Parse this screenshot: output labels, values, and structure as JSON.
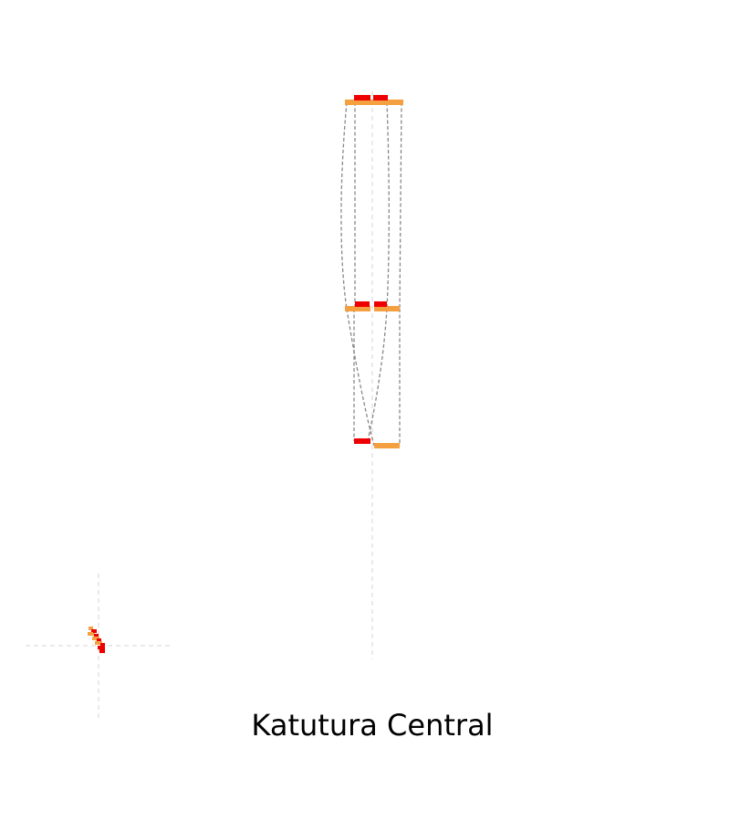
{
  "diagram": {
    "caption": "Katutura Central",
    "colors": {
      "background": "#ffffff",
      "guide_line": "#dddddd",
      "connector": "#888888",
      "platform_primary": "#ee0000",
      "platform_secondary": "#f4a040"
    }
  }
}
